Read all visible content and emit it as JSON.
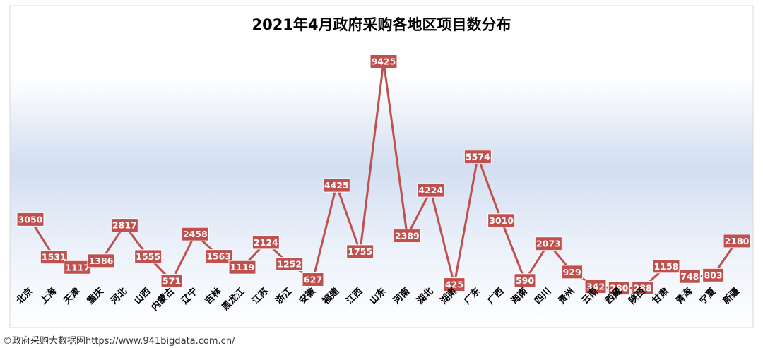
{
  "footer_text": "©政府采购大数据网https://www.941bigdata.com.cn/",
  "colors": {
    "line": "#c0504d",
    "label_bg": "#c0504d",
    "label_text": "#ffffff",
    "gradient_mid": "#c7d6ee",
    "frame": "#d9d9d9"
  },
  "chart_data": {
    "type": "line",
    "title": "2021年4月政府采购各地区项目数分布",
    "xlabel": "",
    "ylabel": "",
    "ylim": [
      0,
      10000
    ],
    "grid": false,
    "legend": "none",
    "categories": [
      "北京",
      "上海",
      "天津",
      "重庆",
      "河北",
      "山西",
      "内蒙古",
      "辽宁",
      "吉林",
      "黑龙江",
      "江苏",
      "浙江",
      "安徽",
      "福建",
      "江西",
      "山东",
      "河南",
      "湖北",
      "湖南",
      "广东",
      "广西",
      "海南",
      "四川",
      "贵州",
      "云南",
      "西藏",
      "陕西",
      "甘肃",
      "青海",
      "宁夏",
      "新疆"
    ],
    "series": [
      {
        "values": [
          3050,
          1531,
          1117,
          1386,
          2817,
          1555,
          571,
          2458,
          1563,
          1119,
          2124,
          1252,
          627,
          4425,
          1755,
          9425,
          2389,
          4224,
          425,
          5574,
          3010,
          590,
          2073,
          929,
          342,
          280,
          288,
          1158,
          748,
          803,
          2180
        ]
      }
    ]
  }
}
